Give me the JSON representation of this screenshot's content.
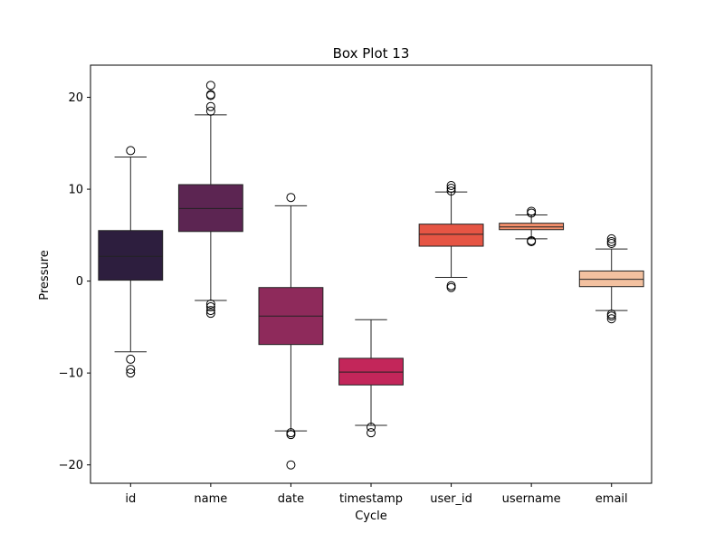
{
  "chart_data": {
    "type": "box",
    "title": "Box Plot 13",
    "xlabel": "Cycle",
    "ylabel": "Pressure",
    "ylim": [
      -22,
      23.5
    ],
    "yticks": [
      {
        "value": 20,
        "label": "20"
      },
      {
        "value": 10,
        "label": "10"
      },
      {
        "value": 0,
        "label": "0"
      },
      {
        "value": -10,
        "label": "−10"
      },
      {
        "value": -20,
        "label": "−20"
      }
    ],
    "grid": false,
    "legend": "none",
    "categories": [
      "id",
      "name",
      "date",
      "timestamp",
      "user_id",
      "username",
      "email"
    ],
    "boxes": [
      {
        "category": "id",
        "whisker_low": -7.7,
        "q1": 0.1,
        "median": 2.7,
        "q3": 5.5,
        "whisker_high": 13.5,
        "outliers": [
          14.2,
          -8.5,
          -9.6,
          -10.0
        ],
        "color": "#2d1e3e"
      },
      {
        "category": "name",
        "whisker_low": -2.1,
        "q1": 5.4,
        "median": 7.9,
        "q3": 10.5,
        "whisker_high": 18.1,
        "outliers": [
          21.3,
          20.3,
          20.2,
          19.0,
          18.5,
          -2.5,
          -2.8,
          -3.2,
          -3.5
        ],
        "color": "#5c2552"
      },
      {
        "category": "date",
        "whisker_low": -16.3,
        "q1": -6.9,
        "median": -3.8,
        "q3": -0.7,
        "whisker_high": 8.2,
        "outliers": [
          9.1,
          -16.5,
          -16.7,
          -20.0
        ],
        "color": "#8e2a5b"
      },
      {
        "category": "timestamp",
        "whisker_low": -15.7,
        "q1": -11.3,
        "median": -9.9,
        "q3": -8.4,
        "whisker_high": -4.2,
        "outliers": [
          -15.9,
          -16.5
        ],
        "color": "#c3265a"
      },
      {
        "category": "user_id",
        "whisker_low": 0.4,
        "q1": 3.8,
        "median": 5.1,
        "q3": 6.2,
        "whisker_high": 9.7,
        "outliers": [
          10.4,
          10.1,
          9.8,
          -0.5,
          -0.7
        ],
        "color": "#e65544"
      },
      {
        "category": "username",
        "whisker_low": 4.6,
        "q1": 5.6,
        "median": 5.9,
        "q3": 6.3,
        "whisker_high": 7.2,
        "outliers": [
          7.6,
          7.4,
          4.4,
          4.3
        ],
        "color": "#f28e6b"
      },
      {
        "category": "email",
        "whisker_low": -3.2,
        "q1": -0.6,
        "median": 0.2,
        "q3": 1.1,
        "whisker_high": 3.5,
        "outliers": [
          4.6,
          4.3,
          4.1,
          -3.6,
          -3.8,
          -4.1
        ],
        "color": "#f3c1a0"
      }
    ]
  }
}
